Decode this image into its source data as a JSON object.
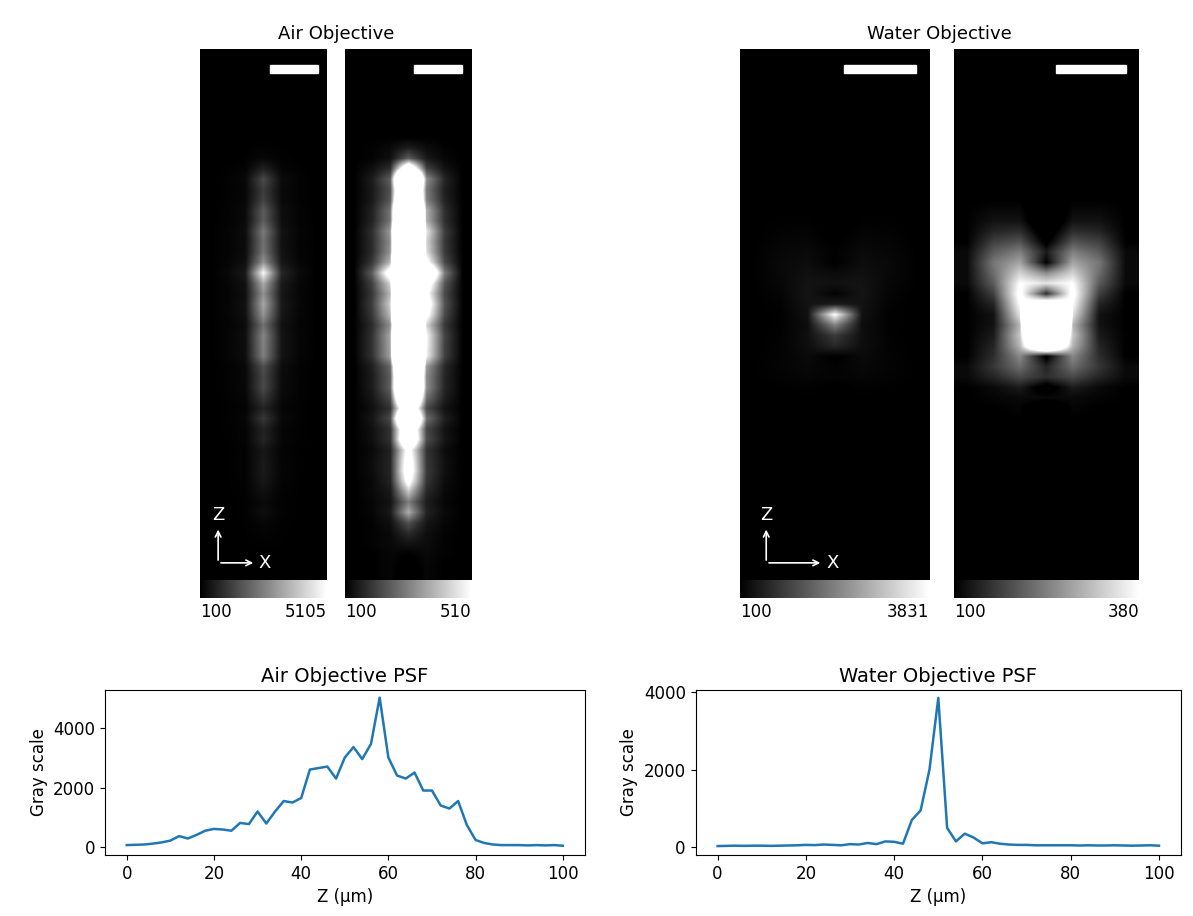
{
  "chart_data": [
    {
      "type": "image_pair",
      "title": "Air Objective",
      "axis_labels": {
        "vertical": "Z",
        "horizontal": "X"
      },
      "cells": [
        [
          100,
          100,
          110,
          80,
          110,
          100,
          100
        ],
        [
          100,
          100,
          110,
          90,
          110,
          100,
          100
        ],
        [
          100,
          100,
          110,
          100,
          115,
          105,
          100
        ],
        [
          100,
          105,
          115,
          130,
          120,
          105,
          100
        ],
        [
          100,
          105,
          115,
          170,
          125,
          105,
          100
        ],
        [
          100,
          105,
          125,
          230,
          135,
          110,
          100
        ],
        [
          100,
          110,
          140,
          380,
          155,
          115,
          100
        ],
        [
          100,
          110,
          130,
          300,
          145,
          110,
          100
        ],
        [
          100,
          115,
          140,
          420,
          165,
          115,
          100
        ],
        [
          100,
          115,
          155,
          560,
          185,
          120,
          100
        ],
        [
          100,
          120,
          160,
          620,
          195,
          125,
          100
        ],
        [
          100,
          120,
          160,
          600,
          190,
          125,
          100
        ],
        [
          100,
          115,
          155,
          560,
          185,
          120,
          100
        ],
        [
          100,
          125,
          180,
          820,
          225,
          135,
          100
        ],
        [
          100,
          125,
          180,
          780,
          215,
          130,
          100
        ],
        [
          100,
          135,
          220,
          1200,
          280,
          150,
          100
        ],
        [
          100,
          125,
          180,
          800,
          220,
          130,
          100
        ],
        [
          100,
          135,
          220,
          1200,
          280,
          150,
          100
        ],
        [
          100,
          145,
          255,
          1550,
          330,
          160,
          100
        ],
        [
          100,
          145,
          250,
          1500,
          325,
          160,
          100
        ],
        [
          100,
          150,
          265,
          1650,
          350,
          165,
          100
        ],
        [
          100,
          180,
          360,
          2600,
          490,
          205,
          100
        ],
        [
          100,
          180,
          365,
          2650,
          500,
          205,
          100
        ],
        [
          100,
          180,
          370,
          2700,
          505,
          210,
          100
        ],
        [
          100,
          170,
          330,
          2300,
          445,
          190,
          100
        ],
        [
          100,
          190,
          400,
          3000,
          550,
          220,
          100
        ],
        [
          100,
          200,
          435,
          3350,
          600,
          235,
          100
        ],
        [
          100,
          190,
          395,
          2950,
          540,
          220,
          100
        ],
        [
          100,
          205,
          445,
          3450,
          620,
          240,
          100
        ],
        [
          100,
          250,
          600,
          5000,
          850,
          300,
          100
        ],
        [
          100,
          190,
          400,
          3000,
          550,
          220,
          100
        ],
        [
          100,
          170,
          340,
          2400,
          460,
          195,
          100
        ],
        [
          100,
          170,
          330,
          2300,
          445,
          190,
          100
        ],
        [
          100,
          175,
          350,
          2500,
          475,
          200,
          100
        ],
        [
          100,
          155,
          290,
          1900,
          385,
          175,
          100
        ],
        [
          100,
          155,
          290,
          1900,
          385,
          175,
          100
        ],
        [
          100,
          140,
          240,
          1400,
          310,
          155,
          100
        ],
        [
          100,
          140,
          230,
          1300,
          295,
          150,
          100
        ],
        [
          100,
          145,
          255,
          1550,
          330,
          160,
          100
        ],
        [
          100,
          125,
          175,
          750,
          210,
          130,
          100
        ],
        [
          100,
          105,
          125,
          250,
          140,
          110,
          100
        ],
        [
          100,
          105,
          115,
          150,
          120,
          105,
          100
        ],
        [
          100,
          100,
          100,
          100,
          100,
          100,
          100
        ],
        [
          100,
          100,
          100,
          80,
          100,
          100,
          100
        ],
        [
          100,
          100,
          100,
          80,
          100,
          100,
          100
        ],
        [
          100,
          100,
          100,
          80,
          100,
          100,
          100
        ],
        [
          100,
          100,
          100,
          70,
          100,
          100,
          100
        ],
        [
          100,
          100,
          100,
          80,
          100,
          100,
          100
        ],
        [
          100,
          100,
          100,
          70,
          100,
          100,
          100
        ],
        [
          100,
          100,
          100,
          80,
          100,
          100,
          100
        ],
        [
          100,
          100,
          100,
          60,
          100,
          100,
          100
        ]
      ],
      "panels": [
        {
          "colorbar_range": [
            100,
            5105
          ],
          "colorbar_ticks": [
            100,
            5105
          ]
        },
        {
          "colorbar_range": [
            100,
            510
          ],
          "colorbar_ticks": [
            100,
            510
          ]
        }
      ]
    },
    {
      "type": "image_pair",
      "title": "Water Objective",
      "axis_labels": {
        "vertical": "Z",
        "horizontal": "X"
      },
      "cells": [
        [
          100,
          100,
          100,
          30,
          100,
          100,
          100
        ],
        [
          100,
          100,
          100,
          35,
          100,
          100,
          100
        ],
        [
          100,
          100,
          100,
          40,
          100,
          100,
          100
        ],
        [
          100,
          100,
          100,
          35,
          100,
          100,
          100
        ],
        [
          100,
          100,
          100,
          40,
          100,
          100,
          100
        ],
        [
          100,
          100,
          100,
          40,
          100,
          100,
          100
        ],
        [
          100,
          100,
          100,
          35,
          100,
          100,
          100
        ],
        [
          100,
          100,
          100,
          40,
          100,
          100,
          100
        ],
        [
          100,
          100,
          100,
          45,
          100,
          100,
          100
        ],
        [
          100,
          100,
          100,
          50,
          100,
          100,
          100
        ],
        [
          100,
          100,
          100,
          60,
          100,
          100,
          100
        ],
        [
          100,
          100,
          100,
          55,
          100,
          100,
          100
        ],
        [
          100,
          100,
          100,
          70,
          100,
          100,
          100
        ],
        [
          100,
          100,
          100,
          60,
          100,
          100,
          100
        ],
        [
          100,
          100,
          100,
          50,
          100,
          100,
          100
        ],
        [
          100,
          100,
          100,
          80,
          100,
          100,
          100
        ],
        [
          100,
          100,
          105,
          70,
          105,
          100,
          100
        ],
        [
          100,
          105,
          110,
          110,
          110,
          105,
          100
        ],
        [
          100,
          110,
          130,
          80,
          130,
          110,
          100
        ],
        [
          110,
          140,
          180,
          150,
          180,
          140,
          110
        ],
        [
          110,
          160,
          220,
          140,
          220,
          160,
          110
        ],
        [
          100,
          150,
          250,
          90,
          250,
          150,
          100
        ],
        [
          100,
          140,
          300,
          700,
          300,
          140,
          100
        ],
        [
          100,
          130,
          320,
          950,
          320,
          130,
          100
        ],
        [
          100,
          120,
          300,
          2000,
          300,
          120,
          100
        ],
        [
          100,
          120,
          350,
          3850,
          350,
          120,
          100
        ],
        [
          100,
          140,
          380,
          500,
          380,
          140,
          100
        ],
        [
          100,
          170,
          400,
          150,
          400,
          170,
          100
        ],
        [
          110,
          200,
          380,
          350,
          380,
          200,
          110
        ],
        [
          110,
          220,
          330,
          250,
          330,
          220,
          110
        ],
        [
          110,
          230,
          280,
          100,
          280,
          230,
          110
        ],
        [
          110,
          200,
          240,
          130,
          240,
          200,
          110
        ],
        [
          100,
          170,
          190,
          90,
          190,
          170,
          100
        ],
        [
          100,
          140,
          150,
          70,
          150,
          140,
          100
        ],
        [
          100,
          120,
          120,
          60,
          120,
          120,
          100
        ],
        [
          100,
          110,
          110,
          60,
          110,
          110,
          100
        ],
        [
          100,
          100,
          100,
          50,
          100,
          100,
          100
        ],
        [
          100,
          100,
          100,
          50,
          100,
          100,
          100
        ],
        [
          100,
          100,
          100,
          50,
          100,
          100,
          100
        ],
        [
          100,
          100,
          100,
          50,
          100,
          100,
          100
        ],
        [
          100,
          100,
          100,
          50,
          100,
          100,
          100
        ],
        [
          100,
          100,
          100,
          45,
          100,
          100,
          100
        ],
        [
          100,
          100,
          100,
          50,
          100,
          100,
          100
        ],
        [
          100,
          100,
          100,
          45,
          100,
          100,
          100
        ],
        [
          100,
          100,
          100,
          45,
          100,
          100,
          100
        ],
        [
          100,
          100,
          100,
          50,
          100,
          100,
          100
        ],
        [
          100,
          100,
          100,
          45,
          100,
          100,
          100
        ],
        [
          100,
          100,
          100,
          40,
          100,
          100,
          100
        ],
        [
          100,
          100,
          100,
          45,
          100,
          100,
          100
        ],
        [
          100,
          100,
          100,
          50,
          100,
          100,
          100
        ],
        [
          100,
          100,
          100,
          40,
          100,
          100,
          100
        ]
      ],
      "panels": [
        {
          "colorbar_range": [
            100,
            3831
          ],
          "colorbar_ticks": [
            100,
            3831
          ]
        },
        {
          "colorbar_range": [
            100,
            380
          ],
          "colorbar_ticks": [
            100,
            380
          ]
        }
      ]
    },
    {
      "type": "line",
      "title": "Air Objective PSF",
      "x_label": "Z (μm)",
      "y_label": "Gray scale",
      "x": [
        0,
        2,
        4,
        6,
        8,
        10,
        12,
        14,
        16,
        18,
        20,
        22,
        24,
        26,
        28,
        30,
        32,
        34,
        36,
        38,
        40,
        42,
        44,
        46,
        48,
        50,
        52,
        54,
        56,
        58,
        60,
        62,
        64,
        66,
        68,
        70,
        72,
        74,
        76,
        78,
        80,
        82,
        84,
        86,
        88,
        90,
        92,
        94,
        96,
        98,
        100
      ],
      "values": [
        80,
        90,
        100,
        130,
        170,
        230,
        380,
        300,
        420,
        560,
        620,
        600,
        560,
        820,
        780,
        1200,
        800,
        1200,
        1550,
        1500,
        1650,
        2600,
        2650,
        2700,
        2300,
        3000,
        3350,
        2950,
        3450,
        5000,
        3000,
        2400,
        2300,
        2500,
        1900,
        1900,
        1400,
        1300,
        1550,
        750,
        250,
        150,
        100,
        80,
        80,
        80,
        70,
        80,
        70,
        80,
        60
      ],
      "color": "#1f77b4",
      "xlim": [
        -5,
        105
      ],
      "xticks": [
        0,
        20,
        40,
        60,
        80,
        100
      ],
      "ylim": [
        -250,
        5250
      ],
      "yticks": [
        0,
        2000,
        4000
      ]
    },
    {
      "type": "line",
      "title": "Water Objective PSF",
      "x_label": "Z (μm)",
      "y_label": "Gray scale",
      "x": [
        0,
        2,
        4,
        6,
        8,
        10,
        12,
        14,
        16,
        18,
        20,
        22,
        24,
        26,
        28,
        30,
        32,
        34,
        36,
        38,
        40,
        42,
        44,
        46,
        48,
        50,
        52,
        54,
        56,
        58,
        60,
        62,
        64,
        66,
        68,
        70,
        72,
        74,
        76,
        78,
        80,
        82,
        84,
        86,
        88,
        90,
        92,
        94,
        96,
        98,
        100
      ],
      "values": [
        30,
        35,
        40,
        35,
        40,
        40,
        35,
        40,
        45,
        50,
        60,
        55,
        70,
        60,
        50,
        80,
        70,
        110,
        80,
        150,
        140,
        90,
        700,
        950,
        2000,
        3850,
        500,
        150,
        350,
        250,
        100,
        130,
        90,
        70,
        60,
        60,
        50,
        50,
        50,
        50,
        50,
        45,
        50,
        45,
        45,
        50,
        45,
        40,
        45,
        50,
        40
      ],
      "color": "#1f77b4",
      "xlim": [
        -5,
        105
      ],
      "xticks": [
        0,
        20,
        40,
        60,
        80,
        100
      ],
      "ylim": [
        -200,
        4050
      ],
      "yticks": [
        0,
        2000,
        4000
      ]
    }
  ]
}
